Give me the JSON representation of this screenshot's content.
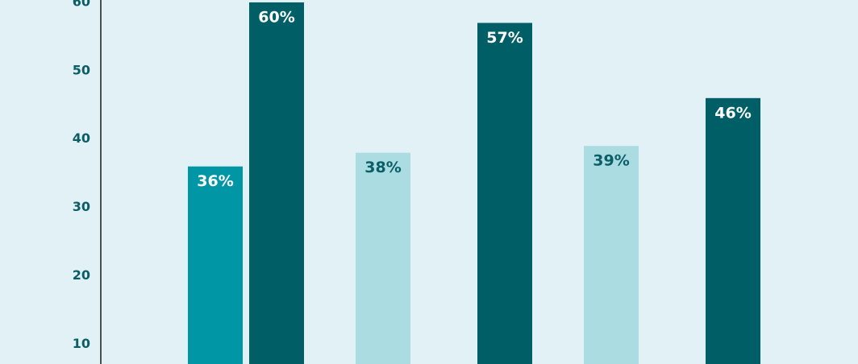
{
  "chart_data": {
    "type": "bar",
    "categories": [
      null,
      null,
      null,
      null,
      null,
      null
    ],
    "values": [
      36,
      60,
      38,
      57,
      39,
      46
    ],
    "value_labels": [
      "36%",
      "60%",
      "38%",
      "57%",
      "39%",
      "46%"
    ],
    "colors": [
      "#0096a6",
      "#005f66",
      "#aadce2",
      "#005f66",
      "#aadce2",
      "#005f66"
    ],
    "ylim": [
      7.1,
      60.35
    ],
    "yticks": [
      10,
      20,
      30,
      40,
      50,
      60
    ]
  }
}
